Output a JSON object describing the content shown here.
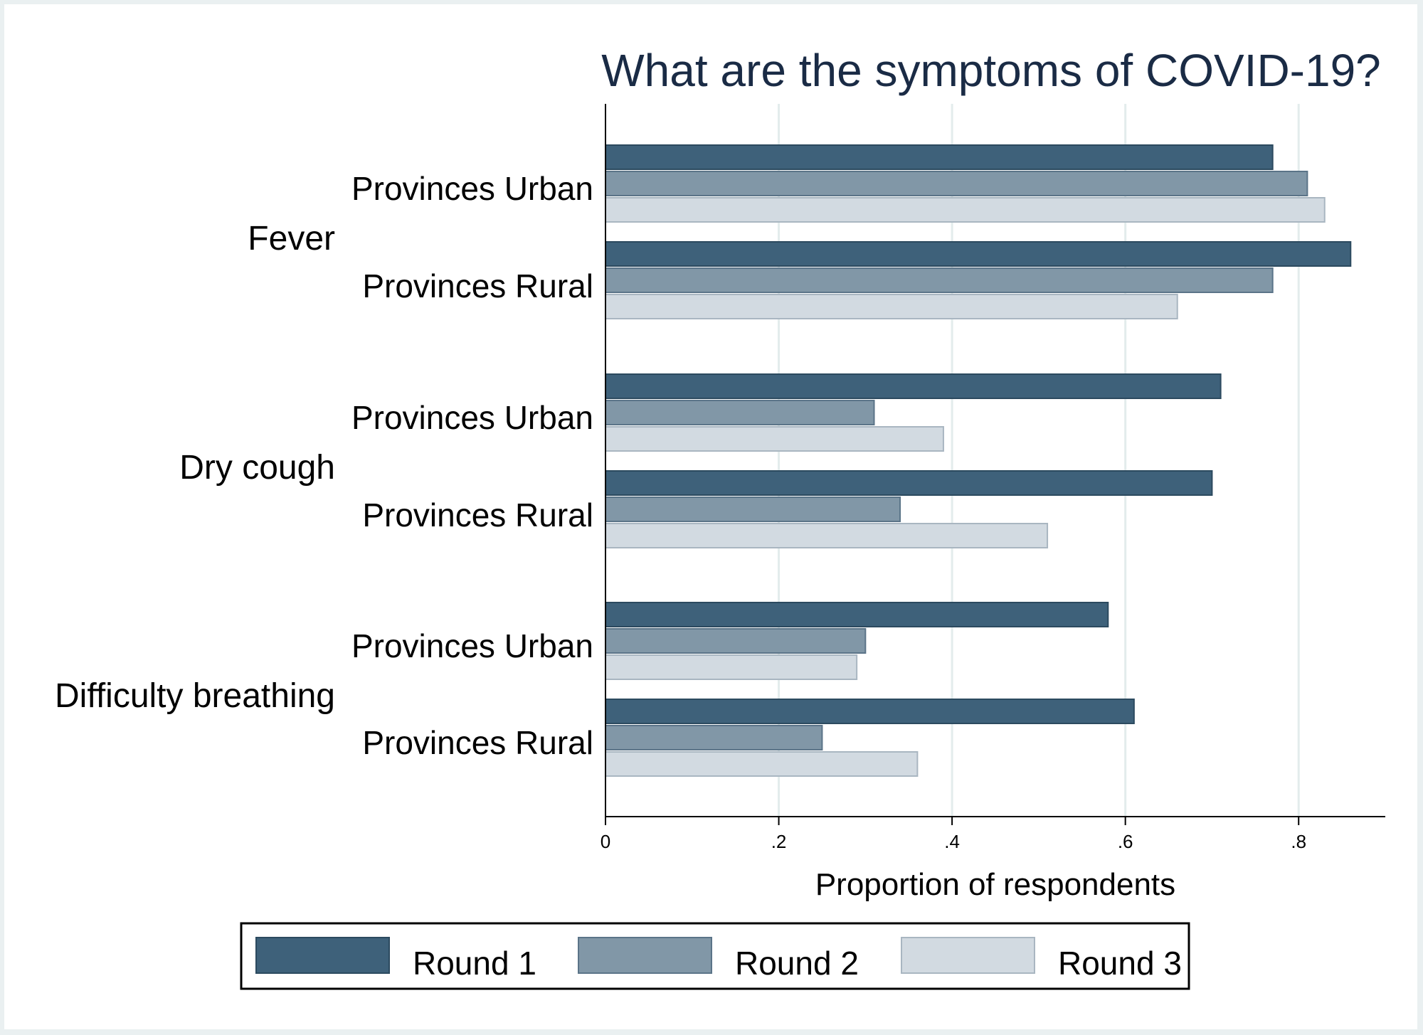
{
  "chart_data": {
    "type": "bar",
    "orientation": "horizontal",
    "title": "What are the symptoms of COVID-19?",
    "xlabel": "Proportion of respondents",
    "xlim": [
      0,
      0.9
    ],
    "xticks": [
      0,
      0.2,
      0.4,
      0.6,
      0.8
    ],
    "xtick_labels": [
      "0",
      ".2",
      ".4",
      ".6",
      ".8"
    ],
    "grid": "vertical",
    "groups": [
      {
        "name": "Fever",
        "subgroups": [
          {
            "name": "Provinces Urban",
            "values": [
              0.77,
              0.81,
              0.83
            ]
          },
          {
            "name": "Provinces Rural",
            "values": [
              0.86,
              0.77,
              0.66
            ]
          }
        ]
      },
      {
        "name": "Dry cough",
        "subgroups": [
          {
            "name": "Provinces Urban",
            "values": [
              0.71,
              0.31,
              0.39
            ]
          },
          {
            "name": "Provinces Rural",
            "values": [
              0.7,
              0.34,
              0.51
            ]
          }
        ]
      },
      {
        "name": "Difficulty breathing",
        "subgroups": [
          {
            "name": "Provinces Urban",
            "values": [
              0.58,
              0.3,
              0.29
            ]
          },
          {
            "name": "Provinces Rural",
            "values": [
              0.61,
              0.25,
              0.36
            ]
          }
        ]
      }
    ],
    "series": [
      {
        "name": "Round 1",
        "color": "#3e617a",
        "stroke": "#2c4a5f"
      },
      {
        "name": "Round 2",
        "color": "#8197a7",
        "stroke": "#5b7488"
      },
      {
        "name": "Round 3",
        "color": "#d2dae1",
        "stroke": "#a9b6c1"
      }
    ],
    "legend": "bottom"
  }
}
